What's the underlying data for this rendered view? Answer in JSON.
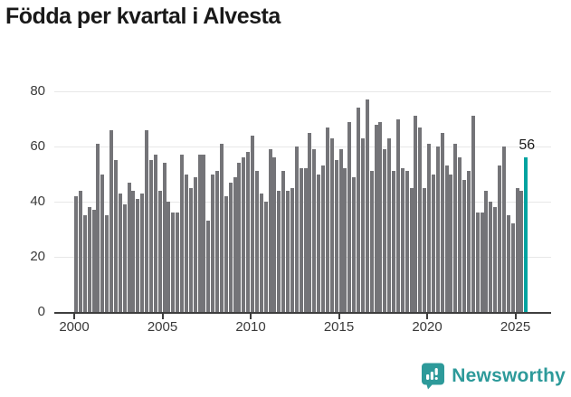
{
  "title": "Födda per kvartal i Alvesta",
  "colors": {
    "bar": "#747478",
    "highlight": "#00a3a0",
    "brand": "#2d9a9a"
  },
  "chart_data": {
    "type": "bar",
    "title": "Födda per kvartal i Alvesta",
    "x_unit": "quarter",
    "x_start": "2000-Q1",
    "x_end": "2025-Q3",
    "x_tick_labels": [
      "2000",
      "2005",
      "2010",
      "2015",
      "2020",
      "2025"
    ],
    "y_ticks": [
      0,
      20,
      40,
      60,
      80
    ],
    "ylim": [
      0,
      80
    ],
    "grid": true,
    "values": [
      42,
      44,
      35,
      38,
      37,
      61,
      50,
      35,
      66,
      55,
      43,
      39,
      47,
      44,
      41,
      43,
      66,
      55,
      57,
      44,
      54,
      40,
      36,
      36,
      57,
      50,
      45,
      49,
      57,
      57,
      33,
      50,
      51,
      61,
      42,
      47,
      49,
      54,
      56,
      58,
      64,
      51,
      43,
      40,
      59,
      56,
      44,
      51,
      44,
      45,
      60,
      52,
      52,
      65,
      59,
      50,
      53,
      67,
      63,
      55,
      59,
      52,
      69,
      49,
      74,
      63,
      77,
      51,
      68,
      69,
      59,
      63,
      51,
      70,
      52,
      51,
      45,
      71,
      67,
      45,
      61,
      50,
      60,
      65,
      53,
      50,
      61,
      56,
      48,
      51,
      71,
      36,
      36,
      44,
      40,
      38,
      53,
      60,
      35,
      32,
      45,
      44,
      56
    ],
    "highlight_last": true,
    "last_value_label": "56"
  },
  "branding": {
    "name": "Newsworthy"
  }
}
